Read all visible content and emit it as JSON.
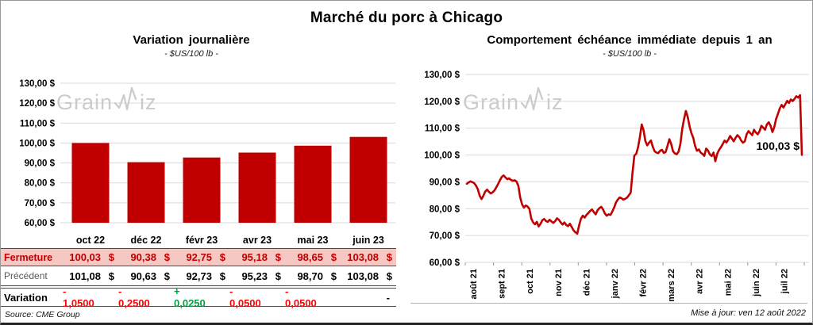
{
  "page": {
    "title": "Marché du porc à Chicago",
    "source_note": "Source: CME Group",
    "update_note": "Mise à jour: ven 12 août 2022",
    "watermark": {
      "prefix": "Grain",
      "suffix": "iz"
    }
  },
  "colors": {
    "series_red": "#C00000",
    "variation_negative": "#FF0000",
    "variation_positive": "#00A143",
    "fermeture_bg": "#F5C8C4",
    "fermeture_text": "#C00000",
    "grid": "#D9D9D9",
    "watermark": "#CBCBCB"
  },
  "chart_data": [
    {
      "id": "variation-journaliere",
      "type": "bar",
      "title": "Variation journalière",
      "subtitle": "- $US/100 lb -",
      "categories": [
        "oct 22",
        "déc 22",
        "févr 23",
        "avr 23",
        "mai 23",
        "juin 23"
      ],
      "values": [
        100.03,
        90.38,
        92.75,
        95.18,
        98.65,
        103.08
      ],
      "ylim": [
        60,
        130
      ],
      "ytick_step": 10,
      "ytick_labels": [
        "130,00 $",
        "120,00 $",
        "110,00 $",
        "100,00 $",
        "90,00 $",
        "80,00 $",
        "70,00 $",
        "60,00 $"
      ],
      "bar_color": "#C00000",
      "grid": true
    },
    {
      "id": "echeance-immediate",
      "type": "line",
      "title": "Comportement échéance immédiate depuis 1 an",
      "subtitle": "- $US/100 lb -",
      "x_labels": [
        "août 21",
        "sept 21",
        "oct 21",
        "nov 21",
        "déc 21",
        "janv 22",
        "févr 22",
        "mars 22",
        "avr 22",
        "mai 22",
        "juin 22",
        "juil 22"
      ],
      "ylim": [
        60,
        130
      ],
      "ytick_step": 10,
      "ytick_labels": [
        "130,00 $",
        "120,00 $",
        "110,00 $",
        "100,00 $",
        "90,00 $",
        "80,00 $",
        "70,00 $",
        "60,00 $"
      ],
      "line_color": "#C00000",
      "grid": true,
      "annotation": {
        "text": "100,03 $",
        "value": 100.03
      },
      "values": [
        89.3,
        89.8,
        90.2,
        89.9,
        89.5,
        88.6,
        87.2,
        84.8,
        83.6,
        84.9,
        86.4,
        87.1,
        86.3,
        85.7,
        86.1,
        86.8,
        88.0,
        89.2,
        90.6,
        91.9,
        92.4,
        91.6,
        91.0,
        91.3,
        90.7,
        90.4,
        90.6,
        90.1,
        88.5,
        84.2,
        81.6,
        80.4,
        81.2,
        80.8,
        79.9,
        76.3,
        74.9,
        74.2,
        75.1,
        73.4,
        74.3,
        75.7,
        76.2,
        75.4,
        75.1,
        75.9,
        75.2,
        74.7,
        75.4,
        76.4,
        75.9,
        74.9,
        74.1,
        74.9,
        73.9,
        73.5,
        74.4,
        73.1,
        71.9,
        71.2,
        70.7,
        73.8,
        76.3,
        77.4,
        76.7,
        77.7,
        78.4,
        79.2,
        79.7,
        78.7,
        77.9,
        79.4,
        80.2,
        80.7,
        79.7,
        78.2,
        77.4,
        77.9,
        77.7,
        78.9,
        80.4,
        82.3,
        83.4,
        84.2,
        83.9,
        83.4,
        83.7,
        84.1,
        85.0,
        86.0,
        93.5,
        99.8,
        100.4,
        102.8,
        106.8,
        111.4,
        109.2,
        105.2,
        103.6,
        104.6,
        105.4,
        103.1,
        101.4,
        100.9,
        100.7,
        101.6,
        101.9,
        100.8,
        101.1,
        103.4,
        105.9,
        104.1,
        101.4,
        100.6,
        100.3,
        101.2,
        104.2,
        109.8,
        113.4,
        116.4,
        114.2,
        110.6,
        108.1,
        106.4,
        103.4,
        101.6,
        102.1,
        100.9,
        100.4,
        99.7,
        102.4,
        101.7,
        100.2,
        99.6,
        100.9,
        97.7,
        100.4,
        101.9,
        102.9,
        104.1,
        105.4,
        104.7,
        105.7,
        107.1,
        106.1,
        105.1,
        106.4,
        107.4,
        106.7,
        105.4,
        104.6,
        105.1,
        107.7,
        108.9,
        108.1,
        107.4,
        109.4,
        108.4,
        107.7,
        108.9,
        110.9,
        110.2,
        109.4,
        111.4,
        112.2,
        110.9,
        108.6,
        110.4,
        113.4,
        115.4,
        117.4,
        118.7,
        117.7,
        118.9,
        120.2,
        119.4,
        120.7,
        120.1,
        120.9,
        121.9,
        121.4,
        122.3,
        100.03
      ]
    }
  ],
  "table": {
    "columns": [
      "oct 22",
      "déc 22",
      "févr 23",
      "avr 23",
      "mai 23",
      "juin 23"
    ],
    "currency": "$",
    "rows": [
      {
        "label": "Fermeture",
        "type": "fermeture",
        "values": [
          "100,03",
          "90,38",
          "92,75",
          "95,18",
          "98,65",
          "103,08"
        ]
      },
      {
        "label": "Précédent",
        "type": "precedent",
        "values": [
          "101,08",
          "90,63",
          "92,73",
          "95,23",
          "98,70",
          "103,08"
        ]
      },
      {
        "label": "Variation",
        "type": "variation",
        "values": [
          "- 1,0500",
          "- 0,2500",
          "+ 0,0250",
          "- 0,0500",
          "- 0,0500",
          "-"
        ],
        "signs": [
          "neg",
          "neg",
          "pos",
          "neg",
          "neg",
          "none"
        ]
      }
    ]
  }
}
